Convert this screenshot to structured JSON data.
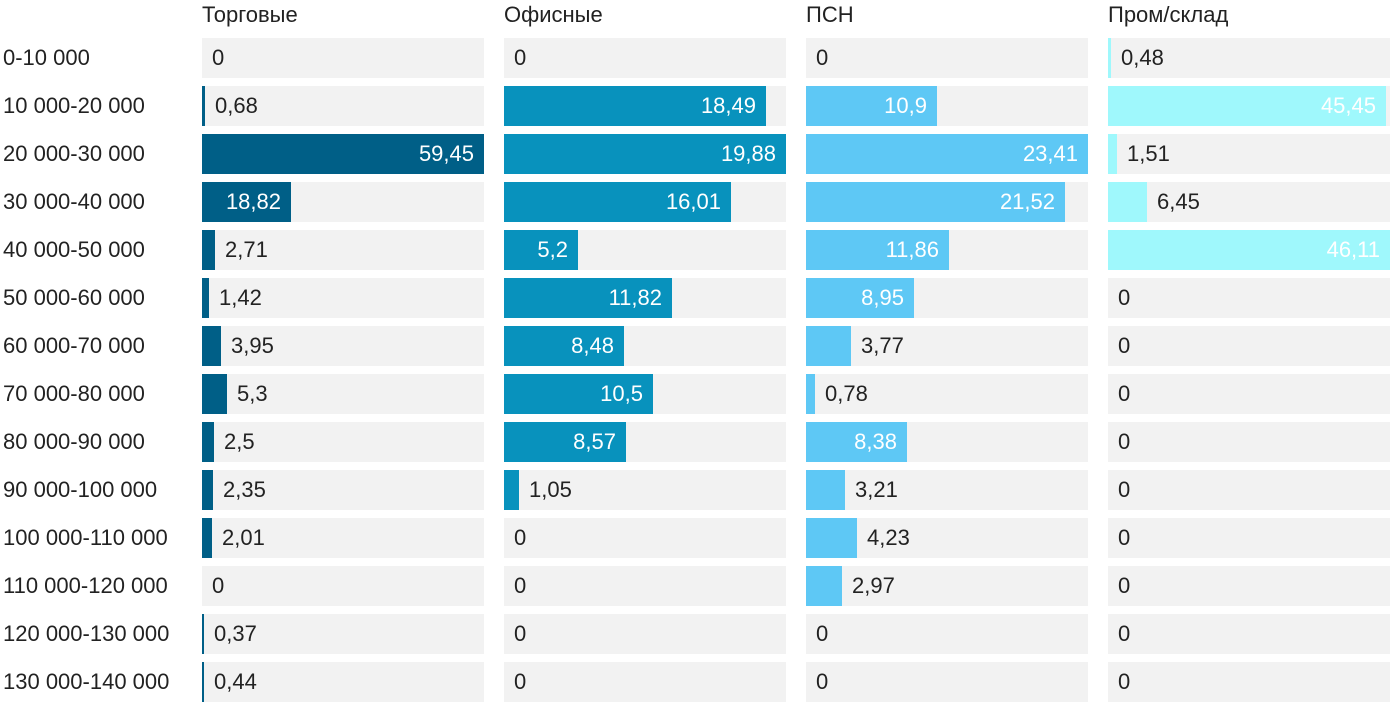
{
  "chart_data": {
    "type": "bar",
    "orientation": "horizontal",
    "layout": "small-multiples",
    "categories": [
      "0-10 000",
      "10 000-20 000",
      "20 000-30 000",
      "30 000-40 000",
      "40 000-50 000",
      "50 000-60 000",
      "60 000-70 000",
      "70 000-80 000",
      "80 000-90 000",
      "90 000-100 000",
      "100 000-110 000",
      "110 000-120 000",
      "120 000-130 000",
      "130 000-140 000"
    ],
    "series": [
      {
        "name": "Торговые",
        "color": "#005f87",
        "values": [
          0,
          0.68,
          59.45,
          18.82,
          2.71,
          1.42,
          3.95,
          5.3,
          2.5,
          2.35,
          2.01,
          0,
          0.37,
          0.44
        ],
        "labels": [
          "0",
          "0,68",
          "59,45",
          "18,82",
          "2,71",
          "1,42",
          "3,95",
          "5,3",
          "2,5",
          "2,35",
          "2,01",
          "0",
          "0,37",
          "0,44"
        ]
      },
      {
        "name": "Офисные",
        "color": "#0892bd",
        "values": [
          0,
          18.49,
          19.88,
          16.01,
          5.2,
          11.82,
          8.48,
          10.5,
          8.57,
          1.05,
          0,
          0,
          0,
          0
        ],
        "labels": [
          "0",
          "18,49",
          "19,88",
          "16,01",
          "5,2",
          "11,82",
          "8,48",
          "10,5",
          "8,57",
          "1,05",
          "0",
          "0",
          "0",
          "0"
        ]
      },
      {
        "name": "ПСН",
        "color": "#5ec8f5",
        "values": [
          0,
          10.9,
          23.41,
          21.52,
          11.86,
          8.95,
          3.77,
          0.78,
          8.38,
          3.21,
          4.23,
          2.97,
          0,
          0
        ],
        "labels": [
          "0",
          "10,9",
          "23,41",
          "21,52",
          "11,86",
          "8,95",
          "3,77",
          "0,78",
          "8,38",
          "3,21",
          "4,23",
          "2,97",
          "0",
          "0"
        ]
      },
      {
        "name": "Пром/склад",
        "color": "#9ff8fc",
        "values": [
          0.48,
          45.45,
          1.51,
          6.45,
          46.11,
          0,
          0,
          0,
          0,
          0,
          0,
          0,
          0,
          0
        ],
        "labels": [
          "0,48",
          "45,45",
          "1,51",
          "6,45",
          "46,11",
          "0",
          "0",
          "0",
          "0",
          "0",
          "0",
          "0",
          "0",
          "0"
        ]
      }
    ],
    "label_color_inside": "#ffffff",
    "label_color_outside": "#222222",
    "track_color": "#f2f2f2",
    "legend": "none",
    "grid": false
  }
}
